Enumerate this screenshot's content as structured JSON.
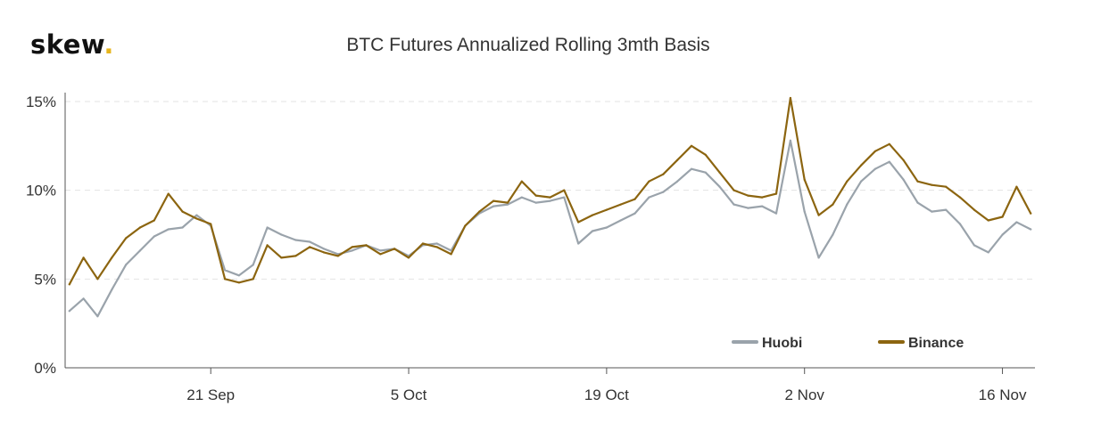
{
  "logo": {
    "text": "skew",
    "dot": "."
  },
  "chart_data": {
    "type": "line",
    "title": "BTC Futures Annualized Rolling 3mth Basis",
    "xlabel": "",
    "ylabel": "",
    "x_start": "2020-09-11",
    "x_end": "2020-11-18",
    "xlim": [
      "2020-09-11",
      "2020-11-18"
    ],
    "ylim": [
      0,
      15.5
    ],
    "y_ticks": [
      0,
      5,
      10,
      15
    ],
    "y_tick_labels": [
      "0%",
      "5%",
      "10%",
      "15%"
    ],
    "x_ticks": [
      "2020-09-21",
      "2020-10-05",
      "2020-10-19",
      "2020-11-02",
      "2020-11-16"
    ],
    "x_tick_labels": [
      "21 Sep",
      "5 Oct",
      "19 Oct",
      "2 Nov",
      "16 Nov"
    ],
    "grid": "horizontal dashed",
    "legend_position": "bottom-right",
    "series": [
      {
        "name": "Huobi",
        "color": "#9aa3ab",
        "points": [
          [
            "2020-09-11",
            3.2
          ],
          [
            "2020-09-12",
            3.9
          ],
          [
            "2020-09-13",
            2.9
          ],
          [
            "2020-09-14",
            4.4
          ],
          [
            "2020-09-15",
            5.8
          ],
          [
            "2020-09-16",
            6.6
          ],
          [
            "2020-09-17",
            7.4
          ],
          [
            "2020-09-18",
            7.8
          ],
          [
            "2020-09-19",
            7.9
          ],
          [
            "2020-09-20",
            8.6
          ],
          [
            "2020-09-21",
            8.0
          ],
          [
            "2020-09-22",
            5.5
          ],
          [
            "2020-09-23",
            5.2
          ],
          [
            "2020-09-24",
            5.8
          ],
          [
            "2020-09-25",
            7.9
          ],
          [
            "2020-09-26",
            7.5
          ],
          [
            "2020-09-27",
            7.2
          ],
          [
            "2020-09-28",
            7.1
          ],
          [
            "2020-09-29",
            6.7
          ],
          [
            "2020-09-30",
            6.4
          ],
          [
            "2020-10-01",
            6.6
          ],
          [
            "2020-10-02",
            6.9
          ],
          [
            "2020-10-03",
            6.6
          ],
          [
            "2020-10-04",
            6.7
          ],
          [
            "2020-10-05",
            6.3
          ],
          [
            "2020-10-06",
            6.9
          ],
          [
            "2020-10-07",
            7.0
          ],
          [
            "2020-10-08",
            6.6
          ],
          [
            "2020-10-09",
            8.0
          ],
          [
            "2020-10-10",
            8.7
          ],
          [
            "2020-10-11",
            9.1
          ],
          [
            "2020-10-12",
            9.2
          ],
          [
            "2020-10-13",
            9.6
          ],
          [
            "2020-10-14",
            9.3
          ],
          [
            "2020-10-15",
            9.4
          ],
          [
            "2020-10-16",
            9.6
          ],
          [
            "2020-10-17",
            7.0
          ],
          [
            "2020-10-18",
            7.7
          ],
          [
            "2020-10-19",
            7.9
          ],
          [
            "2020-10-20",
            8.3
          ],
          [
            "2020-10-21",
            8.7
          ],
          [
            "2020-10-22",
            9.6
          ],
          [
            "2020-10-23",
            9.9
          ],
          [
            "2020-10-24",
            10.5
          ],
          [
            "2020-10-25",
            11.2
          ],
          [
            "2020-10-26",
            11.0
          ],
          [
            "2020-10-27",
            10.2
          ],
          [
            "2020-10-28",
            9.2
          ],
          [
            "2020-10-29",
            9.0
          ],
          [
            "2020-10-30",
            9.1
          ],
          [
            "2020-10-31",
            8.7
          ],
          [
            "2020-11-01",
            12.8
          ],
          [
            "2020-11-02",
            8.8
          ],
          [
            "2020-11-03",
            6.2
          ],
          [
            "2020-11-04",
            7.5
          ],
          [
            "2020-11-05",
            9.2
          ],
          [
            "2020-11-06",
            10.5
          ],
          [
            "2020-11-07",
            11.2
          ],
          [
            "2020-11-08",
            11.6
          ],
          [
            "2020-11-09",
            10.6
          ],
          [
            "2020-11-10",
            9.3
          ],
          [
            "2020-11-11",
            8.8
          ],
          [
            "2020-11-12",
            8.9
          ],
          [
            "2020-11-13",
            8.1
          ],
          [
            "2020-11-14",
            6.9
          ],
          [
            "2020-11-15",
            6.5
          ],
          [
            "2020-11-16",
            7.5
          ],
          [
            "2020-11-17",
            8.2
          ],
          [
            "2020-11-18",
            7.8
          ]
        ]
      },
      {
        "name": "Binance",
        "color": "#8c6510",
        "points": [
          [
            "2020-09-11",
            4.7
          ],
          [
            "2020-09-12",
            6.2
          ],
          [
            "2020-09-13",
            5.0
          ],
          [
            "2020-09-14",
            6.2
          ],
          [
            "2020-09-15",
            7.3
          ],
          [
            "2020-09-16",
            7.9
          ],
          [
            "2020-09-17",
            8.3
          ],
          [
            "2020-09-18",
            9.8
          ],
          [
            "2020-09-19",
            8.8
          ],
          [
            "2020-09-20",
            8.4
          ],
          [
            "2020-09-21",
            8.1
          ],
          [
            "2020-09-22",
            5.0
          ],
          [
            "2020-09-23",
            4.8
          ],
          [
            "2020-09-24",
            5.0
          ],
          [
            "2020-09-25",
            6.9
          ],
          [
            "2020-09-26",
            6.2
          ],
          [
            "2020-09-27",
            6.3
          ],
          [
            "2020-09-28",
            6.8
          ],
          [
            "2020-09-29",
            6.5
          ],
          [
            "2020-09-30",
            6.3
          ],
          [
            "2020-10-01",
            6.8
          ],
          [
            "2020-10-02",
            6.9
          ],
          [
            "2020-10-03",
            6.4
          ],
          [
            "2020-10-04",
            6.7
          ],
          [
            "2020-10-05",
            6.2
          ],
          [
            "2020-10-06",
            7.0
          ],
          [
            "2020-10-07",
            6.8
          ],
          [
            "2020-10-08",
            6.4
          ],
          [
            "2020-10-09",
            8.0
          ],
          [
            "2020-10-10",
            8.8
          ],
          [
            "2020-10-11",
            9.4
          ],
          [
            "2020-10-12",
            9.3
          ],
          [
            "2020-10-13",
            10.5
          ],
          [
            "2020-10-14",
            9.7
          ],
          [
            "2020-10-15",
            9.6
          ],
          [
            "2020-10-16",
            10.0
          ],
          [
            "2020-10-17",
            8.2
          ],
          [
            "2020-10-18",
            8.6
          ],
          [
            "2020-10-19",
            8.9
          ],
          [
            "2020-10-20",
            9.2
          ],
          [
            "2020-10-21",
            9.5
          ],
          [
            "2020-10-22",
            10.5
          ],
          [
            "2020-10-23",
            10.9
          ],
          [
            "2020-10-24",
            11.7
          ],
          [
            "2020-10-25",
            12.5
          ],
          [
            "2020-10-26",
            12.0
          ],
          [
            "2020-10-27",
            11.0
          ],
          [
            "2020-10-28",
            10.0
          ],
          [
            "2020-10-29",
            9.7
          ],
          [
            "2020-10-30",
            9.6
          ],
          [
            "2020-10-31",
            9.8
          ],
          [
            "2020-11-01",
            15.2
          ],
          [
            "2020-11-02",
            10.6
          ],
          [
            "2020-11-03",
            8.6
          ],
          [
            "2020-11-04",
            9.2
          ],
          [
            "2020-11-05",
            10.5
          ],
          [
            "2020-11-06",
            11.4
          ],
          [
            "2020-11-07",
            12.2
          ],
          [
            "2020-11-08",
            12.6
          ],
          [
            "2020-11-09",
            11.7
          ],
          [
            "2020-11-10",
            10.5
          ],
          [
            "2020-11-11",
            10.3
          ],
          [
            "2020-11-12",
            10.2
          ],
          [
            "2020-11-13",
            9.6
          ],
          [
            "2020-11-14",
            8.9
          ],
          [
            "2020-11-15",
            8.3
          ],
          [
            "2020-11-16",
            8.5
          ],
          [
            "2020-11-17",
            10.2
          ],
          [
            "2020-11-18",
            8.7
          ]
        ]
      }
    ]
  }
}
